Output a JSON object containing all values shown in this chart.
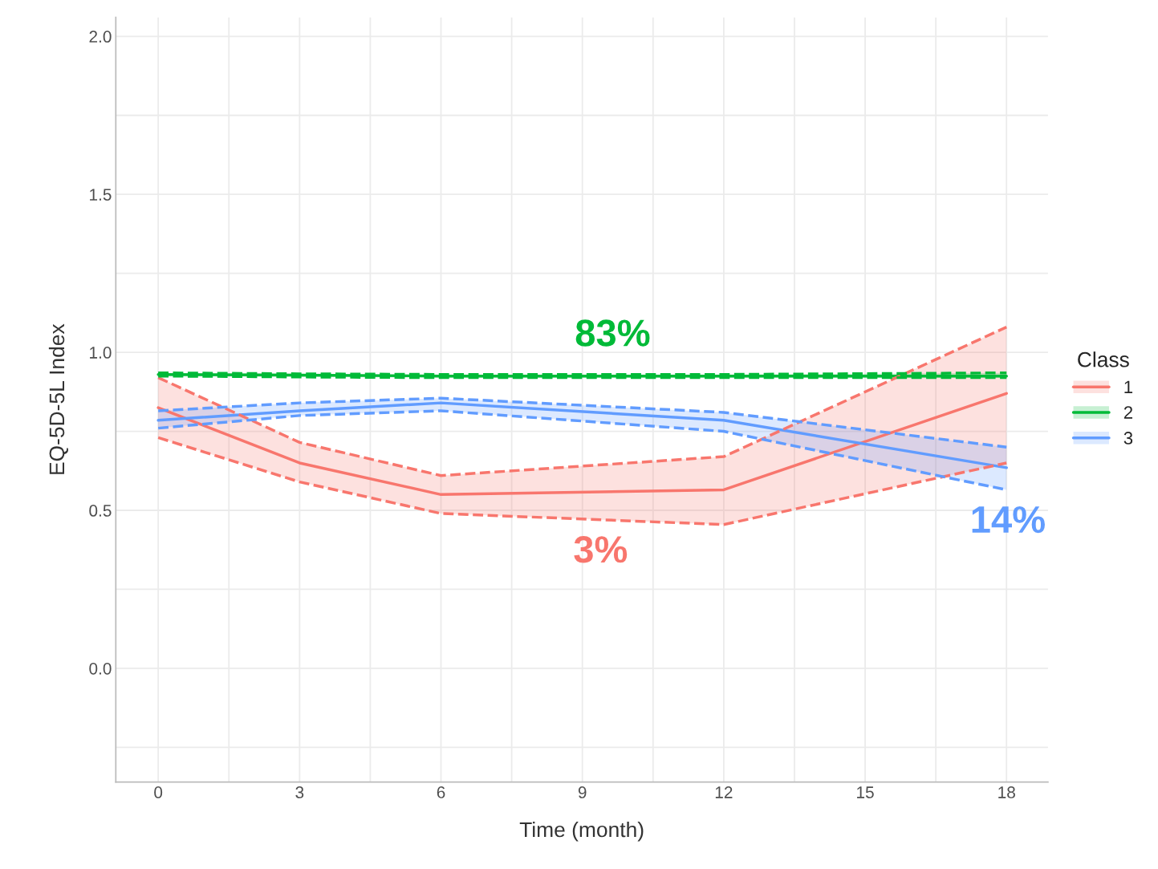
{
  "chart_data": {
    "type": "line",
    "xlabel": "Time (month)",
    "ylabel": "EQ-5D-5L Index",
    "legend_title": "Class",
    "legend": "right",
    "grid": true,
    "line_style": "solid",
    "x": [
      0,
      3,
      6,
      12,
      18
    ],
    "xlim": [
      -0.9,
      18.88
    ],
    "ylim": [
      -0.36,
      2.06
    ],
    "xticks": [
      0,
      3,
      6,
      9,
      12,
      15,
      18
    ],
    "yticks": [
      {
        "value": 0,
        "label": "0.0"
      },
      {
        "value": 0.5,
        "label": "0.5"
      },
      {
        "value": 1.0,
        "label": "1.0"
      },
      {
        "value": 1.5,
        "label": "1.5"
      },
      {
        "value": 2.0,
        "label": "2.0"
      }
    ],
    "series": [
      {
        "name": "1",
        "color": "#f8766d",
        "values": [
          0.825,
          0.65,
          0.55,
          0.565,
          0.87
        ],
        "lower": [
          0.73,
          0.59,
          0.49,
          0.455,
          0.65
        ],
        "upper": [
          0.92,
          0.715,
          0.61,
          0.67,
          1.08
        ]
      },
      {
        "name": "2",
        "color": "#00ba38",
        "values": [
          0.93,
          0.928,
          0.925,
          0.925,
          0.925
        ],
        "lower": [
          0.925,
          0.922,
          0.92,
          0.92,
          0.92
        ],
        "upper": [
          0.935,
          0.932,
          0.93,
          0.93,
          0.935
        ]
      },
      {
        "name": "3",
        "color": "#619cff",
        "values": [
          0.785,
          0.815,
          0.84,
          0.785,
          0.635
        ],
        "lower": [
          0.76,
          0.8,
          0.815,
          0.75,
          0.565
        ],
        "upper": [
          0.815,
          0.84,
          0.855,
          0.81,
          0.7
        ]
      },
      {
        "color": "#f8766d",
        "line_style": "dashed",
        "values": [
          0.73,
          0.59,
          0.49,
          0.455,
          0.65
        ]
      },
      {
        "color": "#f8766d",
        "line_style": "dashed",
        "values": [
          0.92,
          0.715,
          0.61,
          0.67,
          1.08
        ]
      },
      {
        "color": "#00ba38",
        "line_style": "dashed",
        "values": [
          0.925,
          0.922,
          0.92,
          0.92,
          0.92
        ]
      },
      {
        "color": "#00ba38",
        "line_style": "dashed",
        "values": [
          0.935,
          0.932,
          0.93,
          0.93,
          0.935
        ]
      },
      {
        "color": "#619cff",
        "line_style": "dashed",
        "values": [
          0.76,
          0.8,
          0.815,
          0.75,
          0.565
        ]
      },
      {
        "color": "#619cff",
        "line_style": "dashed",
        "values": [
          0.815,
          0.84,
          0.855,
          0.81,
          0.7
        ]
      }
    ],
    "annotations": [
      "3%",
      "83%",
      "14%"
    ]
  }
}
